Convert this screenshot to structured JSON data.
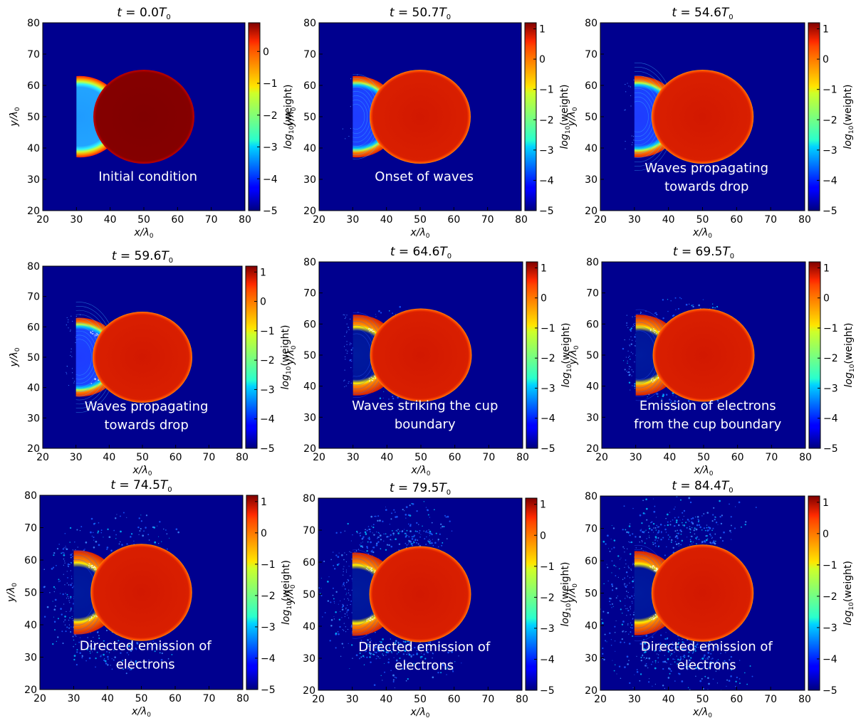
{
  "chart_data": [
    {
      "type": "heatmap",
      "time_value": 0.0,
      "title_t": "t = ",
      "title_num": "0.0",
      "title_unit": "T",
      "title_sub": "0",
      "xlabel": "x/λ",
      "xlabel_sub": "0",
      "ylabel": "y/λ",
      "ylabel_sub": "0",
      "xlim": [
        20,
        80
      ],
      "ylim": [
        20,
        80
      ],
      "xticks": [
        20,
        30,
        40,
        50,
        60,
        70,
        80
      ],
      "yticks": [
        20,
        30,
        40,
        50,
        60,
        70,
        80
      ],
      "colorbar": {
        "label": "log",
        "label_sub": "10",
        "label_rest": "(weight)",
        "range": [
          -5,
          0.9
        ],
        "ticks": [
          0,
          -1,
          -2,
          -3,
          -4,
          -5
        ],
        "tick_labels": [
          "0",
          "−1",
          "−2",
          "−3",
          "−4",
          "−5"
        ]
      },
      "annotation": [
        "Initial condition"
      ]
    },
    {
      "type": "heatmap",
      "time_value": 50.7,
      "title_t": "t = ",
      "title_num": "50.7",
      "title_unit": "T",
      "title_sub": "0",
      "xlabel": "x/λ",
      "xlabel_sub": "0",
      "ylabel": "y/λ",
      "ylabel_sub": "0",
      "xlim": [
        20,
        80
      ],
      "ylim": [
        20,
        80
      ],
      "xticks": [
        20,
        30,
        40,
        50,
        60,
        70,
        80
      ],
      "yticks": [
        20,
        30,
        40,
        50,
        60,
        70,
        80
      ],
      "colorbar": {
        "label": "log",
        "label_sub": "10",
        "label_rest": "(weight)",
        "range": [
          -5,
          1.2
        ],
        "ticks": [
          1,
          0,
          -1,
          -2,
          -3,
          -4,
          -5
        ],
        "tick_labels": [
          "1",
          "0",
          "−1",
          "−2",
          "−3",
          "−4",
          "−5"
        ]
      },
      "annotation": [
        "Onset of waves"
      ]
    },
    {
      "type": "heatmap",
      "time_value": 54.6,
      "title_t": "t = ",
      "title_num": "54.6",
      "title_unit": "T",
      "title_sub": "0",
      "xlabel": "x/λ",
      "xlabel_sub": "0",
      "ylabel": "y/λ",
      "ylabel_sub": "0",
      "xlim": [
        20,
        80
      ],
      "ylim": [
        20,
        80
      ],
      "xticks": [
        20,
        30,
        40,
        50,
        60,
        70,
        80
      ],
      "yticks": [
        20,
        30,
        40,
        50,
        60,
        70,
        80
      ],
      "colorbar": {
        "label": "log",
        "label_sub": "10",
        "label_rest": "(weight)",
        "range": [
          -5,
          1.2
        ],
        "ticks": [
          1,
          0,
          -1,
          -2,
          -3,
          -4,
          -5
        ],
        "tick_labels": [
          "1",
          "0",
          "−1",
          "−2",
          "−3",
          "−4",
          "−5"
        ]
      },
      "annotation": [
        "Waves propagating",
        "towards drop"
      ]
    },
    {
      "type": "heatmap",
      "time_value": 59.6,
      "title_t": "t = ",
      "title_num": "59.6",
      "title_unit": "T",
      "title_sub": "0",
      "xlabel": "x/λ",
      "xlabel_sub": "0",
      "ylabel": "y/λ",
      "ylabel_sub": "0",
      "xlim": [
        20,
        80
      ],
      "ylim": [
        20,
        80
      ],
      "xticks": [
        20,
        30,
        40,
        50,
        60,
        70,
        80
      ],
      "yticks": [
        20,
        30,
        40,
        50,
        60,
        70,
        80
      ],
      "colorbar": {
        "label": "log",
        "label_sub": "10",
        "label_rest": "(weight)",
        "range": [
          -5,
          1.2
        ],
        "ticks": [
          1,
          0,
          -1,
          -2,
          -3,
          -4,
          -5
        ],
        "tick_labels": [
          "1",
          "0",
          "−1",
          "−2",
          "−3",
          "−4",
          "−5"
        ]
      },
      "annotation": [
        "Waves propagating",
        "towards drop"
      ]
    },
    {
      "type": "heatmap",
      "time_value": 64.6,
      "title_t": "t = ",
      "title_num": "64.6",
      "title_unit": "T",
      "title_sub": "0",
      "xlabel": "x/λ",
      "xlabel_sub": "0",
      "ylabel": "y/λ",
      "ylabel_sub": "0",
      "xlim": [
        20,
        80
      ],
      "ylim": [
        20,
        80
      ],
      "xticks": [
        20,
        30,
        40,
        50,
        60,
        70,
        80
      ],
      "yticks": [
        20,
        30,
        40,
        50,
        60,
        70,
        80
      ],
      "colorbar": {
        "label": "log",
        "label_sub": "10",
        "label_rest": "(weight)",
        "range": [
          -5,
          1.2
        ],
        "ticks": [
          1,
          0,
          -1,
          -2,
          -3,
          -4,
          -5
        ],
        "tick_labels": [
          "1",
          "0",
          "−1",
          "−2",
          "−3",
          "−4",
          "−5"
        ]
      },
      "annotation": [
        "Waves striking the cup",
        "boundary"
      ]
    },
    {
      "type": "heatmap",
      "time_value": 69.5,
      "title_t": "t = ",
      "title_num": "69.5",
      "title_unit": "T",
      "title_sub": "0",
      "xlabel": "x/λ",
      "xlabel_sub": "0",
      "ylabel": "y/λ",
      "ylabel_sub": "0",
      "xlim": [
        20,
        80
      ],
      "ylim": [
        20,
        80
      ],
      "xticks": [
        20,
        30,
        40,
        50,
        60,
        70,
        80
      ],
      "yticks": [
        20,
        30,
        40,
        50,
        60,
        70,
        80
      ],
      "colorbar": {
        "label": "log",
        "label_sub": "10",
        "label_rest": "(weight)",
        "range": [
          -5,
          1.2
        ],
        "ticks": [
          1,
          0,
          -1,
          -2,
          -3,
          -4,
          -5
        ],
        "tick_labels": [
          "1",
          "0",
          "−1",
          "−2",
          "−3",
          "−4",
          "−5"
        ]
      },
      "annotation": [
        "Emission of electrons",
        "from the cup boundary"
      ]
    },
    {
      "type": "heatmap",
      "time_value": 74.5,
      "title_t": "t = ",
      "title_num": "74.5",
      "title_unit": "T",
      "title_sub": "0",
      "xlabel": "x/λ",
      "xlabel_sub": "0",
      "ylabel": "y/λ",
      "ylabel_sub": "0",
      "xlim": [
        20,
        80
      ],
      "ylim": [
        20,
        80
      ],
      "xticks": [
        20,
        30,
        40,
        50,
        60,
        70,
        80
      ],
      "yticks": [
        20,
        30,
        40,
        50,
        60,
        70,
        80
      ],
      "colorbar": {
        "label": "log",
        "label_sub": "10",
        "label_rest": "(weight)",
        "range": [
          -5,
          1.2
        ],
        "ticks": [
          1,
          0,
          -1,
          -2,
          -3,
          -4,
          -5
        ],
        "tick_labels": [
          "1",
          "0",
          "−1",
          "−2",
          "−3",
          "−4",
          "−5"
        ]
      },
      "annotation": [
        "Directed emission of",
        "electrons"
      ]
    },
    {
      "type": "heatmap",
      "time_value": 79.5,
      "title_t": "t = ",
      "title_num": "79.5",
      "title_unit": "T",
      "title_sub": "0",
      "xlabel": "x/λ",
      "xlabel_sub": "0",
      "ylabel": "y/λ",
      "ylabel_sub": "0",
      "xlim": [
        20,
        80
      ],
      "ylim": [
        20,
        80
      ],
      "xticks": [
        20,
        30,
        40,
        50,
        60,
        70,
        80
      ],
      "yticks": [
        20,
        30,
        40,
        50,
        60,
        70,
        80
      ],
      "colorbar": {
        "label": "log",
        "label_sub": "10",
        "label_rest": "(weight)",
        "range": [
          -5,
          1.2
        ],
        "ticks": [
          1,
          0,
          -1,
          -2,
          -3,
          -4,
          -5
        ],
        "tick_labels": [
          "1",
          "0",
          "−1",
          "−2",
          "−3",
          "−4",
          "−5"
        ]
      },
      "annotation": [
        "Directed emission of",
        "electrons"
      ]
    },
    {
      "type": "heatmap",
      "time_value": 84.4,
      "title_t": "t = ",
      "title_num": "84.4",
      "title_unit": "T",
      "title_sub": "0",
      "xlabel": "x/λ",
      "xlabel_sub": "0",
      "ylabel": "y/λ",
      "ylabel_sub": "0",
      "xlim": [
        20,
        80
      ],
      "ylim": [
        20,
        80
      ],
      "xticks": [
        20,
        30,
        40,
        50,
        60,
        70,
        80
      ],
      "yticks": [
        20,
        30,
        40,
        50,
        60,
        70,
        80
      ],
      "colorbar": {
        "label": "log",
        "label_sub": "10",
        "label_rest": "(weight)",
        "range": [
          -5,
          1.2
        ],
        "ticks": [
          1,
          0,
          -1,
          -2,
          -3,
          -4,
          -5
        ],
        "tick_labels": [
          "1",
          "0",
          "−1",
          "−2",
          "−3",
          "−4",
          "−5"
        ]
      },
      "annotation": [
        "Directed emission of",
        "electrons"
      ]
    }
  ],
  "colors": {
    "background": "#00008f",
    "drop": "#d41a00",
    "drop_initial": "#800000",
    "cup_outer": "#e03000",
    "jet_cyan": "#00e0ff",
    "jet_blue": "#1a4dff",
    "annotation_text": "#ffffff"
  }
}
